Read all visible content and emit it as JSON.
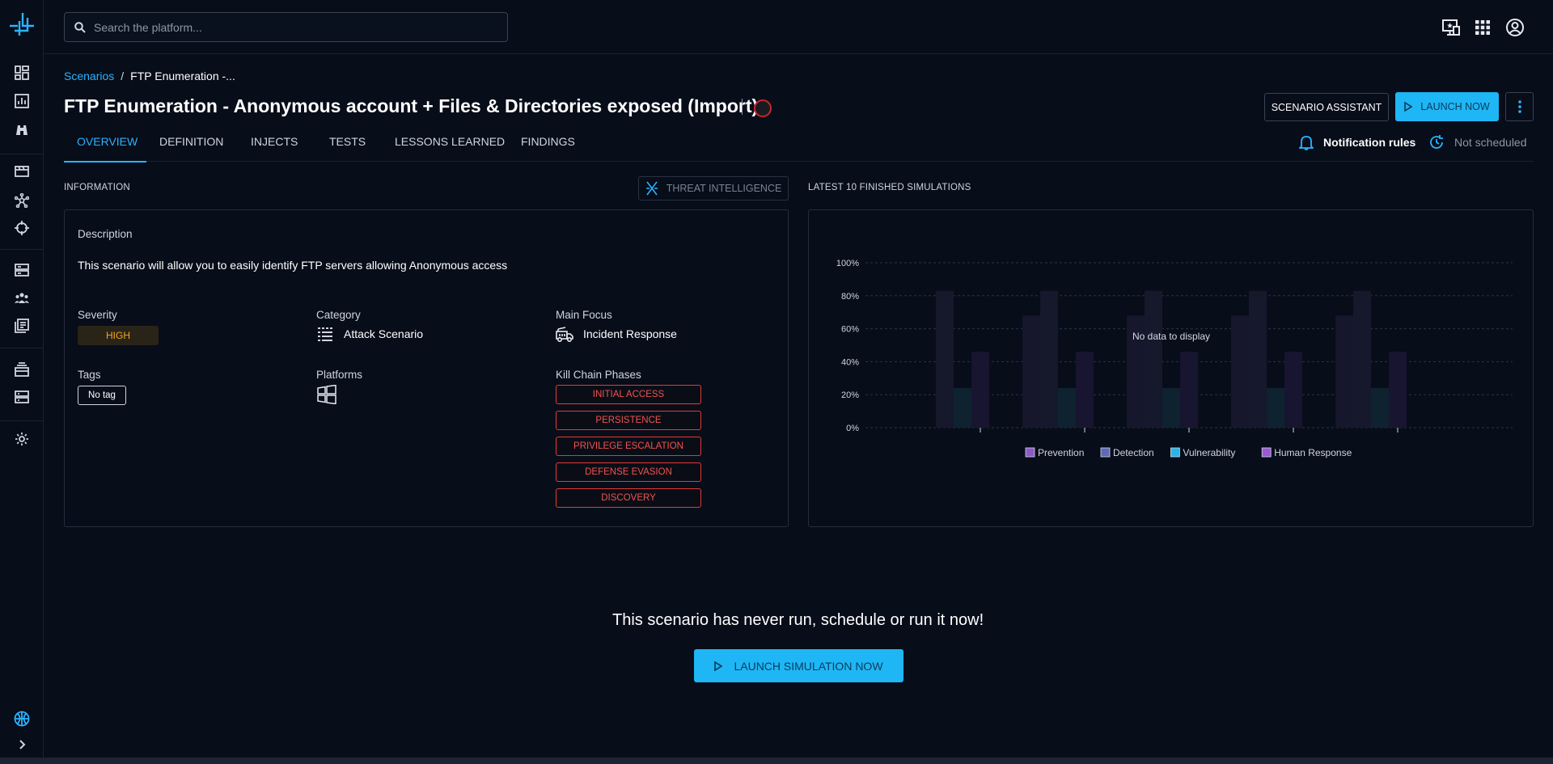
{
  "topbar": {
    "search_placeholder": "Search the platform..."
  },
  "breadcrumb": {
    "parent": "Scenarios",
    "current": "FTP Enumeration -..."
  },
  "header": {
    "title": "FTP Enumeration - Anonymous account + Files & Directories exposed (Import)",
    "assistant_label": "SCENARIO ASSISTANT",
    "launch_label": "LAUNCH NOW"
  },
  "tabs": [
    {
      "label": "OVERVIEW"
    },
    {
      "label": "DEFINITION"
    },
    {
      "label": "INJECTS"
    },
    {
      "label": "TESTS"
    },
    {
      "label": "LESSONS LEARNED"
    },
    {
      "label": "FINDINGS"
    }
  ],
  "notification_rules": "Notification rules",
  "schedule_status": "Not scheduled",
  "information": {
    "section_label": "INFORMATION",
    "threat_intel_label": "THREAT INTELLIGENCE",
    "description_label": "Description",
    "description": "This scenario will allow you to easily identify FTP servers allowing Anonymous access",
    "severity_label": "Severity",
    "severity": "HIGH",
    "category_label": "Category",
    "category": "Attack Scenario",
    "main_focus_label": "Main Focus",
    "main_focus": "Incident Response",
    "tags_label": "Tags",
    "tag": "No tag",
    "platforms_label": "Platforms",
    "kill_chain_label": "Kill Chain Phases",
    "kill_chain_phases": [
      "INITIAL ACCESS",
      "PERSISTENCE",
      "PRIVILEGE ESCALATION",
      "DEFENSE EVASION",
      "DISCOVERY"
    ]
  },
  "simulations": {
    "section_label": "LATEST 10 FINISHED SIMULATIONS",
    "no_data": "No data to display"
  },
  "chart_data": {
    "type": "bar",
    "y_ticks": [
      "100%",
      "80%",
      "60%",
      "40%",
      "20%",
      "0%"
    ],
    "ylim": [
      0,
      100
    ],
    "grid": true,
    "legend_position": "bottom",
    "series": [
      {
        "name": "Prevention",
        "color": "#8e59c9"
      },
      {
        "name": "Detection",
        "color": "#5e6ab8"
      },
      {
        "name": "Vulnerability",
        "color": "#2cb3e5"
      },
      {
        "name": "Human Response",
        "color": "#9a5ad4"
      }
    ]
  },
  "empty_state": {
    "message": "This scenario has never run, schedule or run it now!",
    "button_label": "LAUNCH SIMULATION NOW"
  },
  "colors": {
    "accent": "#1fb6f5",
    "danger": "#e53935",
    "warning": "#f5a623",
    "background": "#070d19"
  }
}
